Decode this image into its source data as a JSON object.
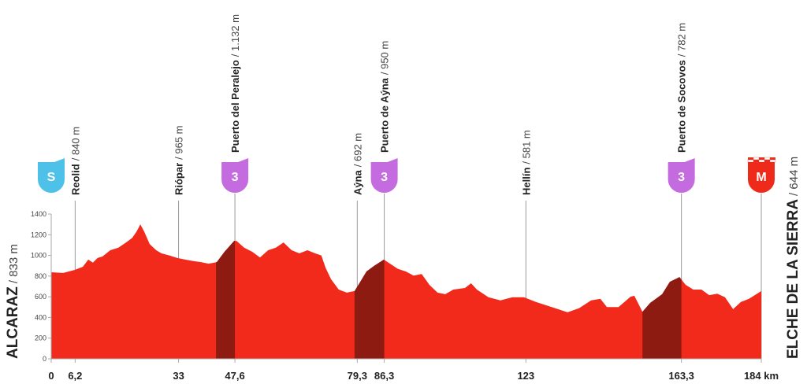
{
  "chart_data": {
    "type": "profile",
    "color": "#f12a1b",
    "climb_color": "#8e1b12",
    "x": [
      0,
      3.1,
      6.1,
      8.2,
      9.6,
      10.8,
      12.0,
      13.3,
      15.3,
      17.4,
      19.4,
      21.0,
      22.1,
      23.1,
      24.1,
      25.5,
      27.2,
      28.6,
      30.6,
      32.7,
      34.7,
      36.8,
      38.8,
      40.8,
      42.9,
      44.9,
      47.4,
      48.0,
      50.0,
      52.1,
      54.1,
      56.2,
      58.2,
      60.2,
      62.3,
      64.3,
      66.4,
      68.4,
      70.0,
      71.1,
      72.5,
      74.5,
      76.6,
      78.6,
      79.6,
      81.7,
      83.7,
      86.2,
      87.8,
      89.8,
      91.9,
      93.9,
      96.0,
      98.0,
      100.1,
      102.1,
      104.2,
      107.2,
      108.8,
      110.3,
      113.3,
      116.4,
      119.5,
      122.5,
      125.6,
      129.7,
      133.8,
      136.8,
      139.9,
      142.3,
      144.0,
      147.0,
      150.1,
      151.1,
      153.2,
      155.2,
      158.3,
      160.3,
      162.8,
      164.4,
      166.4,
      168.5,
      170.5,
      172.6,
      174.6,
      176.7,
      178.7,
      180.8,
      184
    ],
    "values": [
      837,
      830,
      860,
      890,
      960,
      930,
      975,
      990,
      1050,
      1075,
      1125,
      1170,
      1230,
      1300,
      1230,
      1110,
      1050,
      1020,
      1000,
      975,
      960,
      945,
      935,
      920,
      935,
      1035,
      1140,
      1140,
      1075,
      1035,
      980,
      1050,
      1075,
      1125,
      1050,
      1020,
      1050,
      1020,
      1000,
      880,
      770,
      670,
      640,
      655,
      715,
      845,
      900,
      960,
      920,
      870,
      845,
      805,
      820,
      715,
      640,
      625,
      670,
      685,
      730,
      670,
      595,
      565,
      595,
      595,
      550,
      500,
      450,
      490,
      565,
      580,
      500,
      500,
      600,
      610,
      455,
      540,
      625,
      745,
      790,
      715,
      670,
      670,
      615,
      630,
      595,
      480,
      550,
      580,
      655
    ],
    "climbs": [
      {
        "start": 42.7,
        "end": 47.6
      },
      {
        "start": 78.6,
        "end": 86.3
      },
      {
        "start": 153.2,
        "end": 163.3
      }
    ],
    "xlim": [
      0,
      184
    ],
    "ylim": [
      0,
      1400
    ],
    "yticks": [
      0,
      200,
      400,
      600,
      800,
      1000,
      1200,
      1400
    ],
    "xticks": [
      0,
      {
        "value": 6.2,
        "label": "6,2"
      },
      33,
      {
        "value": 47.6,
        "label": "47,6"
      },
      {
        "value": 79.3,
        "label": "79,3"
      },
      {
        "value": 86.3,
        "label": "86,3"
      },
      123,
      {
        "value": 163.3,
        "label": "163,3"
      },
      {
        "value": 184,
        "label": "184 km"
      }
    ],
    "start": {
      "name": "ALCARAZ",
      "altitude_label": "/ 833 m",
      "badge": "S"
    },
    "finish": {
      "name": "ELCHE DE LA SIERRA",
      "altitude_label": "/ 644 m",
      "badge": "M"
    },
    "waypoints": [
      {
        "km": 6.2,
        "name": "Reolid",
        "altitude_label": "/ 840 m"
      },
      {
        "km": 33,
        "name": "Riópar",
        "altitude_label": "/ 965 m"
      },
      {
        "km": 47.6,
        "name": "Puerto del Peralejo",
        "altitude_label": "/ 1.132 m",
        "badge": "3"
      },
      {
        "km": 79.3,
        "name": "Aýna",
        "altitude_label": "/ 692 m"
      },
      {
        "km": 86.3,
        "name": "Puerto de Aýna",
        "altitude_label": "/ 950 m",
        "badge": "3"
      },
      {
        "km": 123,
        "name": "Hellín",
        "altitude_label": "/ 581 m"
      },
      {
        "km": 163.3,
        "name": "Puerto de Socovos",
        "altitude_label": "/ 782 m",
        "badge": "3"
      }
    ]
  }
}
